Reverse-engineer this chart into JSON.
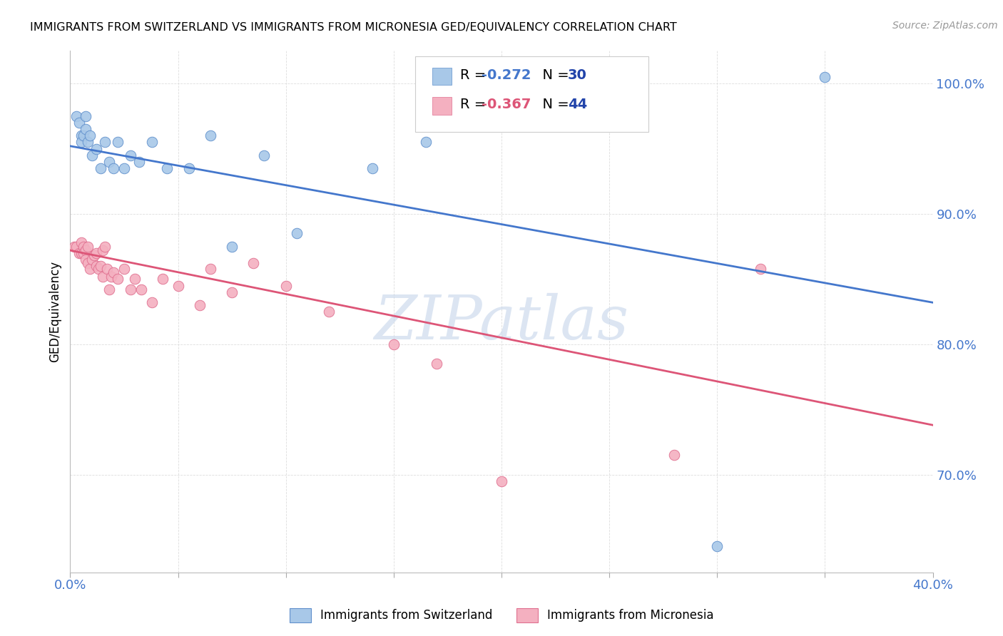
{
  "title": "IMMIGRANTS FROM SWITZERLAND VS IMMIGRANTS FROM MICRONESIA GED/EQUIVALENCY CORRELATION CHART",
  "source": "Source: ZipAtlas.com",
  "ylabel": "GED/Equivalency",
  "blue_label": "Immigrants from Switzerland",
  "pink_label": "Immigrants from Micronesia",
  "blue_R": "-0.272",
  "blue_N": "30",
  "pink_R": "-0.367",
  "pink_N": "44",
  "blue_dot_color": "#a8c8e8",
  "blue_edge_color": "#6090cc",
  "pink_dot_color": "#f4b0c0",
  "pink_edge_color": "#e07090",
  "blue_line_color": "#4477cc",
  "pink_line_color": "#dd5577",
  "R_blue_color": "#4477cc",
  "R_pink_color": "#dd5577",
  "N_color": "#2244aa",
  "watermark": "ZIPatlas",
  "xmin": 0.0,
  "xmax": 0.4,
  "ymin": 0.625,
  "ymax": 1.025,
  "yticks": [
    0.7,
    0.8,
    0.9,
    1.0
  ],
  "xticks": [
    0.0,
    0.05,
    0.1,
    0.15,
    0.2,
    0.25,
    0.3,
    0.35,
    0.4
  ],
  "blue_scatter_x": [
    0.003,
    0.004,
    0.005,
    0.005,
    0.006,
    0.007,
    0.007,
    0.008,
    0.009,
    0.01,
    0.012,
    0.014,
    0.016,
    0.018,
    0.02,
    0.022,
    0.025,
    0.028,
    0.032,
    0.038,
    0.045,
    0.055,
    0.065,
    0.075,
    0.09,
    0.105,
    0.14,
    0.165,
    0.3,
    0.35
  ],
  "blue_scatter_y": [
    0.975,
    0.97,
    0.96,
    0.955,
    0.96,
    0.965,
    0.975,
    0.955,
    0.96,
    0.945,
    0.95,
    0.935,
    0.955,
    0.94,
    0.935,
    0.955,
    0.935,
    0.945,
    0.94,
    0.955,
    0.935,
    0.935,
    0.96,
    0.875,
    0.945,
    0.885,
    0.935,
    0.955,
    0.645,
    1.005
  ],
  "pink_scatter_x": [
    0.002,
    0.003,
    0.004,
    0.005,
    0.005,
    0.006,
    0.006,
    0.007,
    0.007,
    0.008,
    0.008,
    0.009,
    0.01,
    0.011,
    0.012,
    0.012,
    0.013,
    0.014,
    0.015,
    0.015,
    0.016,
    0.017,
    0.018,
    0.019,
    0.02,
    0.022,
    0.025,
    0.028,
    0.03,
    0.033,
    0.038,
    0.043,
    0.05,
    0.06,
    0.065,
    0.075,
    0.085,
    0.1,
    0.12,
    0.15,
    0.17,
    0.2,
    0.28,
    0.32
  ],
  "pink_scatter_y": [
    0.875,
    0.875,
    0.87,
    0.878,
    0.87,
    0.875,
    0.87,
    0.872,
    0.865,
    0.862,
    0.875,
    0.858,
    0.865,
    0.868,
    0.86,
    0.87,
    0.858,
    0.86,
    0.852,
    0.872,
    0.875,
    0.858,
    0.842,
    0.852,
    0.855,
    0.85,
    0.858,
    0.842,
    0.85,
    0.842,
    0.832,
    0.85,
    0.845,
    0.83,
    0.858,
    0.84,
    0.862,
    0.845,
    0.825,
    0.8,
    0.785,
    0.695,
    0.715,
    0.858
  ],
  "blue_line_x0": 0.0,
  "blue_line_x1": 0.4,
  "blue_line_y0": 0.952,
  "blue_line_y1": 0.832,
  "pink_line_x0": 0.0,
  "pink_line_x1": 0.4,
  "pink_line_y0": 0.872,
  "pink_line_y1": 0.738,
  "grid_color": "#dddddd",
  "title_fontsize": 11.5,
  "tick_fontsize": 13,
  "legend_fontsize": 14,
  "dot_size": 110
}
